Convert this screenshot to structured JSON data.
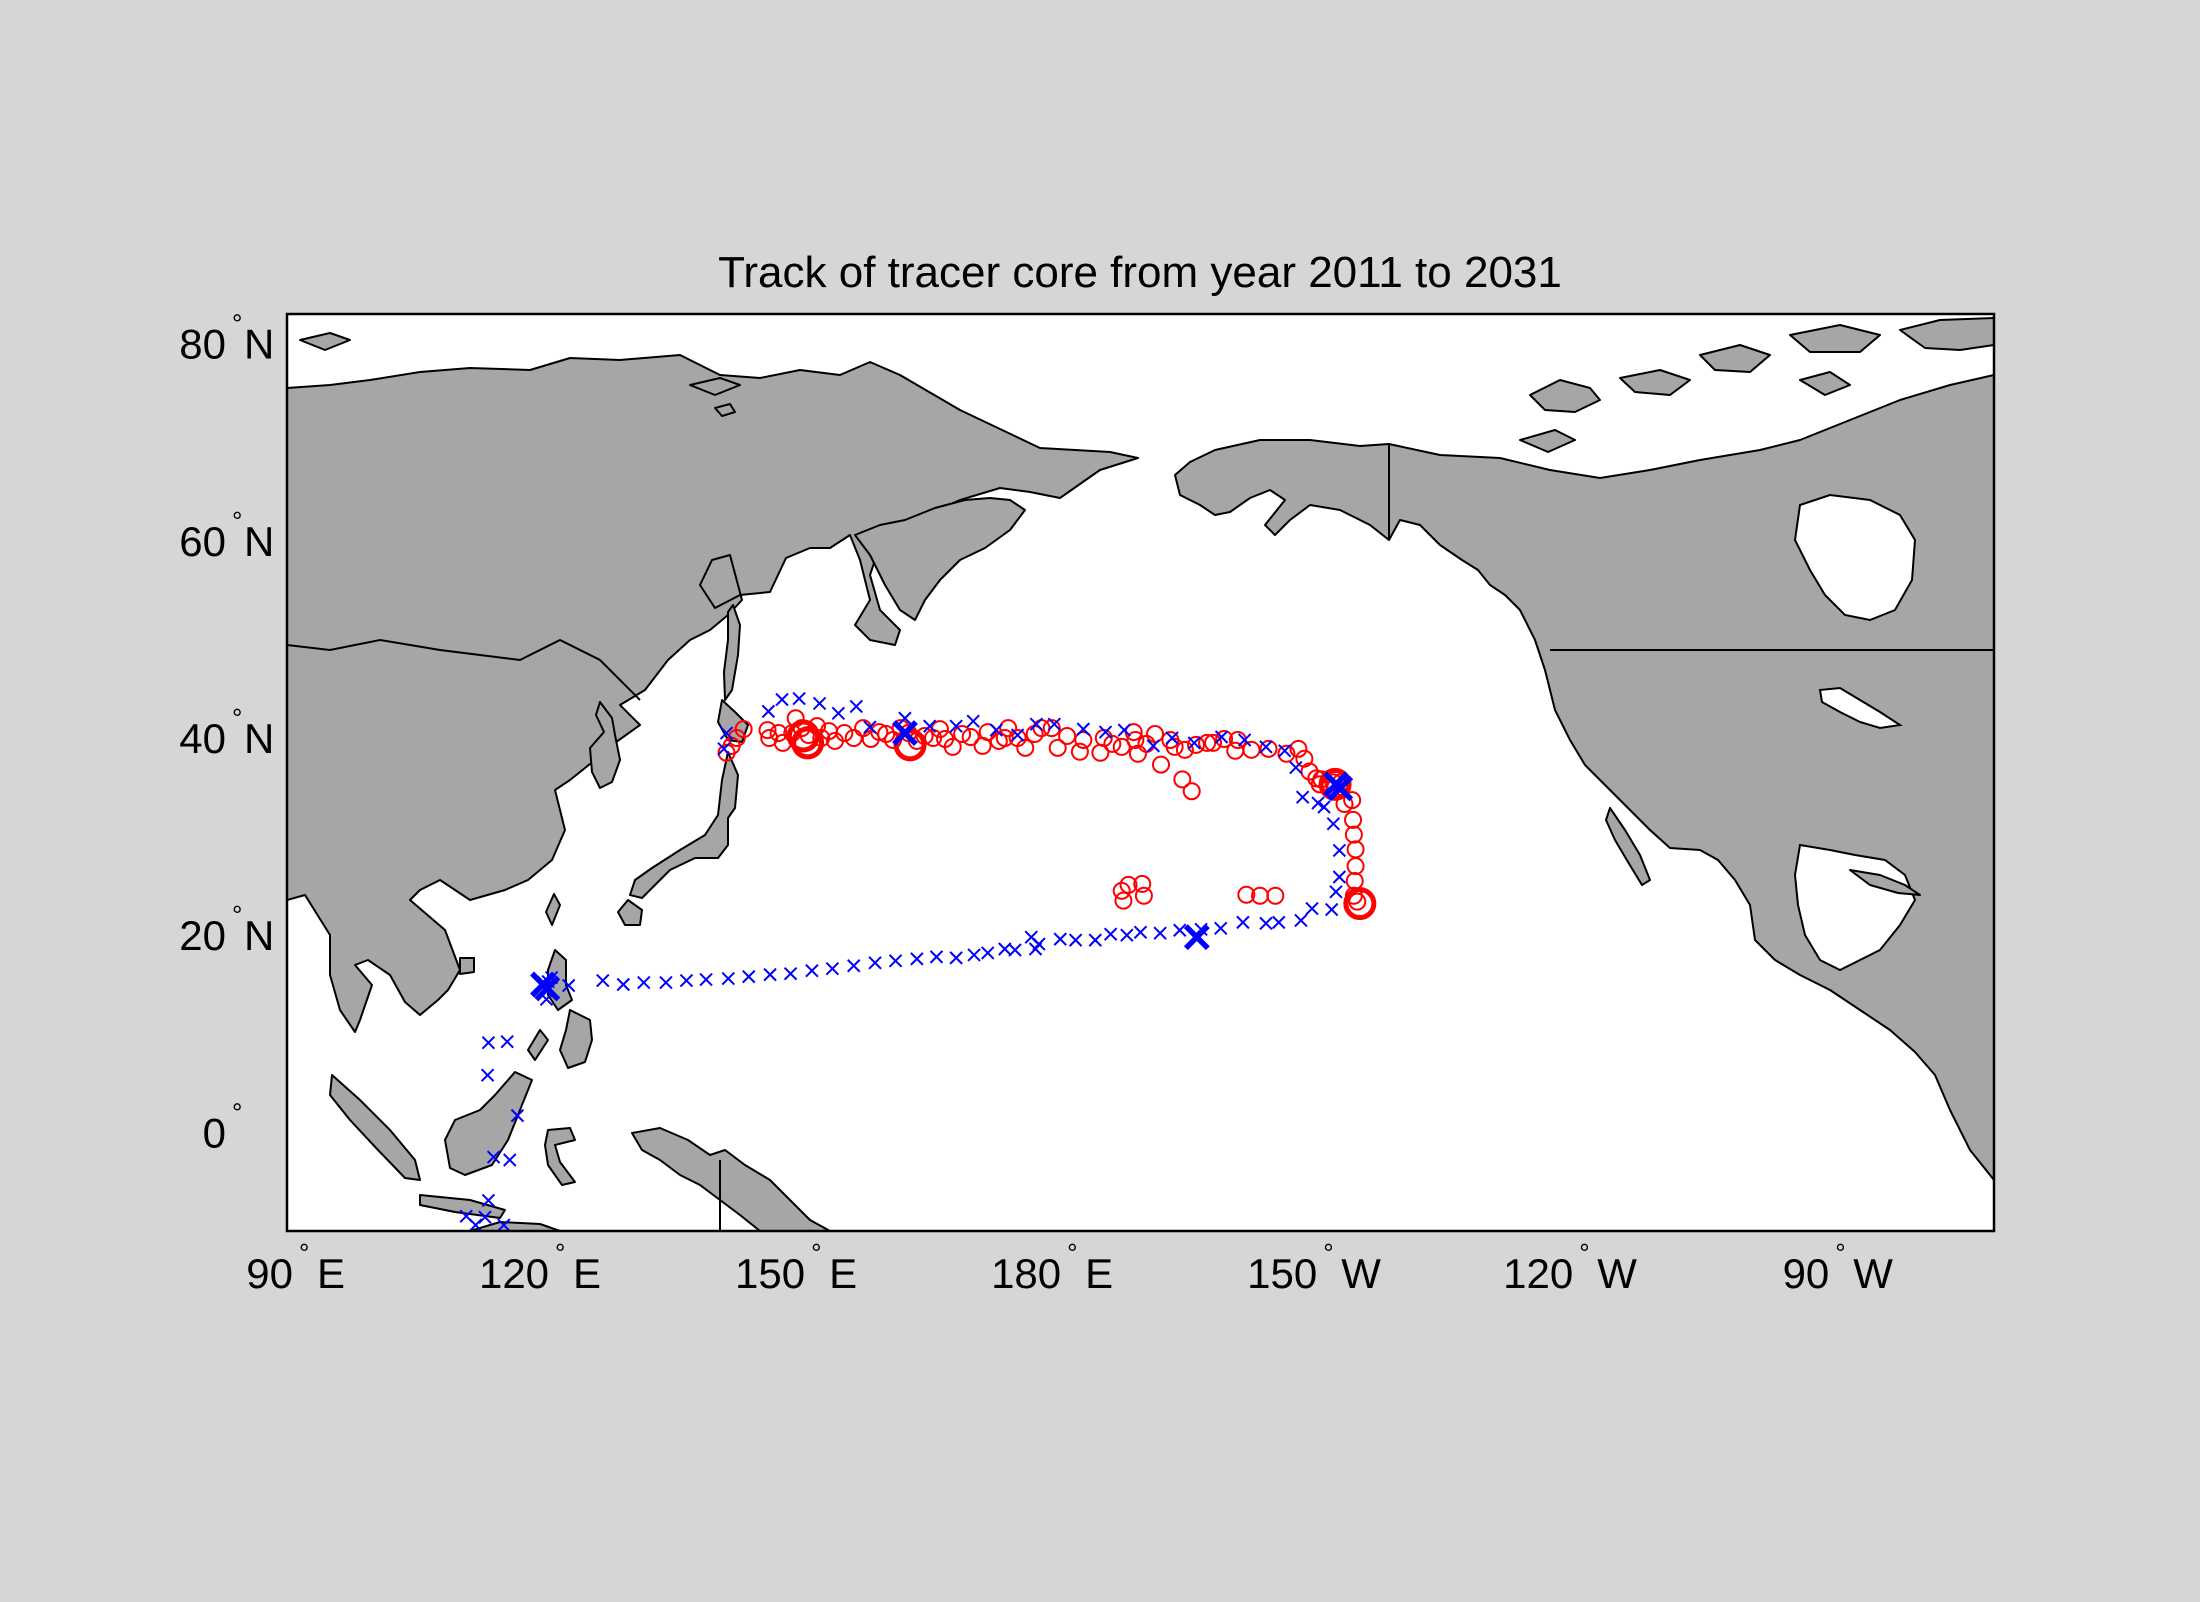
{
  "title": "Track of tracer core from  year 2011 to 2031",
  "axes": {
    "lon_range_east": [
      90,
      290
    ],
    "lat_range": [
      -10,
      83
    ],
    "x_ticks": [
      {
        "lon": 90,
        "label": "90",
        "hemi": "E"
      },
      {
        "lon": 120,
        "label": "120",
        "hemi": "E"
      },
      {
        "lon": 150,
        "label": "150",
        "hemi": "E"
      },
      {
        "lon": 180,
        "label": "180",
        "hemi": "E"
      },
      {
        "lon": 210,
        "label": "150",
        "hemi": "W"
      },
      {
        "lon": 240,
        "label": "120",
        "hemi": "W"
      },
      {
        "lon": 270,
        "label": "90",
        "hemi": "W"
      }
    ],
    "y_ticks": [
      {
        "lat": 80,
        "label": "80",
        "hemi": "N"
      },
      {
        "lat": 60,
        "label": "60",
        "hemi": "N"
      },
      {
        "lat": 40,
        "label": "40",
        "hemi": "N"
      },
      {
        "lat": 20,
        "label": "20",
        "hemi": "N"
      },
      {
        "lat": 0,
        "label": "0",
        "hemi": ""
      }
    ]
  },
  "colors": {
    "background": "#d6d6d6",
    "ocean": "#ffffff",
    "land": "#a6a6a6",
    "track_circle": "#ff0000",
    "track_cross": "#0000ff"
  },
  "chart_data": {
    "type": "scatter",
    "title": "Track of tracer core from  year 2011 to 2031",
    "xlim_lon_east": [
      90,
      290
    ],
    "ylim_lat": [
      -10,
      83
    ],
    "series": [
      {
        "marker": "o",
        "color": "#ff0000",
        "points_lon_lat": [
          [
            141.5,
            38.5
          ],
          [
            142.1,
            39.2
          ],
          [
            142.7,
            40.0
          ],
          [
            143.5,
            40.9
          ],
          [
            146.3,
            40.8
          ],
          [
            146.5,
            40.0
          ],
          [
            147.6,
            40.5
          ],
          [
            148.1,
            39.5
          ],
          [
            149.2,
            40.5
          ],
          [
            149.6,
            42.0
          ],
          [
            150.3,
            41.0
          ],
          [
            151.1,
            40.3
          ],
          [
            152.1,
            41.2
          ],
          [
            152.6,
            40.0
          ],
          [
            153.5,
            40.7
          ],
          [
            154.2,
            39.7
          ],
          [
            155.3,
            40.5
          ],
          [
            156.4,
            40.0
          ],
          [
            157.5,
            41.0
          ],
          [
            158.4,
            39.9
          ],
          [
            159.4,
            40.6
          ],
          [
            160.2,
            40.4
          ],
          [
            161.0,
            39.8
          ],
          [
            161.9,
            41.0
          ],
          [
            162.8,
            40.5
          ],
          [
            163.8,
            39.7
          ],
          [
            164.7,
            40.2
          ],
          [
            165.7,
            40.0
          ],
          [
            166.5,
            40.9
          ],
          [
            167.1,
            39.9
          ],
          [
            168.0,
            39.1
          ],
          [
            169.1,
            40.4
          ],
          [
            170.1,
            40.1
          ],
          [
            171.5,
            39.2
          ],
          [
            172.1,
            40.6
          ],
          [
            173.4,
            39.7
          ],
          [
            174.1,
            40.0
          ],
          [
            174.5,
            41.0
          ],
          [
            175.6,
            40.0
          ],
          [
            176.5,
            39.0
          ],
          [
            177.6,
            40.4
          ],
          [
            178.4,
            41.0
          ],
          [
            179.6,
            41.0
          ],
          [
            180.3,
            39.0
          ],
          [
            181.4,
            40.2
          ],
          [
            182.9,
            38.6
          ],
          [
            183.3,
            39.8
          ],
          [
            185.3,
            38.5
          ],
          [
            185.7,
            40.0
          ],
          [
            186.7,
            39.4
          ],
          [
            187.8,
            39.1
          ],
          [
            189.2,
            40.6
          ],
          [
            189.4,
            39.8
          ],
          [
            189.7,
            38.4
          ],
          [
            190.7,
            39.4
          ],
          [
            191.7,
            40.4
          ],
          [
            192.4,
            37.3
          ],
          [
            193.5,
            39.8
          ],
          [
            194.0,
            39.1
          ],
          [
            194.9,
            35.8
          ],
          [
            195.2,
            38.8
          ],
          [
            196.0,
            34.6
          ],
          [
            196.5,
            39.3
          ],
          [
            197.8,
            39.5
          ],
          [
            198.5,
            39.5
          ],
          [
            199.8,
            39.9
          ],
          [
            201.1,
            38.7
          ],
          [
            201.4,
            39.8
          ],
          [
            203.0,
            38.8
          ],
          [
            205.0,
            38.9
          ],
          [
            207.1,
            38.4
          ],
          [
            208.5,
            38.9
          ],
          [
            209.2,
            37.9
          ],
          [
            209.8,
            36.6
          ],
          [
            210.6,
            35.9
          ],
          [
            211.0,
            35.3
          ],
          [
            211.2,
            35.8
          ],
          [
            212.6,
            35.5
          ],
          [
            213.5,
            35.5
          ],
          [
            213.6,
            35.0
          ],
          [
            213.9,
            33.3
          ],
          [
            214.8,
            33.7
          ],
          [
            214.9,
            31.7
          ],
          [
            215.0,
            30.2
          ],
          [
            215.2,
            28.7
          ],
          [
            215.2,
            27.0
          ],
          [
            215.1,
            25.5
          ],
          [
            215.0,
            24.0
          ],
          [
            215.4,
            23.4
          ],
          [
            188.6,
            25.1
          ],
          [
            190.2,
            25.2
          ],
          [
            190.4,
            24.0
          ],
          [
            188.0,
            23.5
          ],
          [
            187.8,
            24.5
          ],
          [
            204.0,
            24.0
          ],
          [
            205.8,
            24.0
          ],
          [
            202.4,
            24.1
          ]
        ]
      },
      {
        "marker": "o-large",
        "color": "#ff0000",
        "points_lon_lat": [
          [
            150.5,
            40.2
          ],
          [
            151.0,
            39.5
          ],
          [
            163.0,
            39.3
          ],
          [
            212.8,
            35.3
          ],
          [
            215.7,
            23.2
          ]
        ]
      },
      {
        "marker": "x",
        "color": "#0000ff",
        "points_lon_lat": [
          [
            141.2,
            38.9
          ],
          [
            141.5,
            40.5
          ],
          [
            146.4,
            42.7
          ],
          [
            148.0,
            43.9
          ],
          [
            150.0,
            44.0
          ],
          [
            152.4,
            43.5
          ],
          [
            154.6,
            42.5
          ],
          [
            156.7,
            43.2
          ],
          [
            158.3,
            41.1
          ],
          [
            162.4,
            42.0
          ],
          [
            165.3,
            41.2
          ],
          [
            168.4,
            41.2
          ],
          [
            170.4,
            41.7
          ],
          [
            173.1,
            40.8
          ],
          [
            175.6,
            40.3
          ],
          [
            177.8,
            41.4
          ],
          [
            179.9,
            41.4
          ],
          [
            183.3,
            40.9
          ],
          [
            185.9,
            40.6
          ],
          [
            188.1,
            40.8
          ],
          [
            191.5,
            39.2
          ],
          [
            193.7,
            40.0
          ],
          [
            196.3,
            39.5
          ],
          [
            199.5,
            40.1
          ],
          [
            202.2,
            39.8
          ],
          [
            204.7,
            39.1
          ],
          [
            206.9,
            38.7
          ],
          [
            208.2,
            37.0
          ],
          [
            209.0,
            34.0
          ],
          [
            210.8,
            33.4
          ],
          [
            211.5,
            33.0
          ],
          [
            212.6,
            31.3
          ],
          [
            213.3,
            28.6
          ],
          [
            213.3,
            25.9
          ],
          [
            212.9,
            24.4
          ],
          [
            212.4,
            22.6
          ],
          [
            210.1,
            22.7
          ],
          [
            208.8,
            21.5
          ],
          [
            206.2,
            21.3
          ],
          [
            204.7,
            21.2
          ],
          [
            202.0,
            21.3
          ],
          [
            199.4,
            20.7
          ],
          [
            197.1,
            20.6
          ],
          [
            194.6,
            20.5
          ],
          [
            192.3,
            20.2
          ],
          [
            190.0,
            20.3
          ],
          [
            188.4,
            20.0
          ],
          [
            186.5,
            20.1
          ],
          [
            184.7,
            19.5
          ],
          [
            182.4,
            19.5
          ],
          [
            180.6,
            19.6
          ],
          [
            178.1,
            19.1
          ],
          [
            177.7,
            18.6
          ],
          [
            177.2,
            19.8
          ],
          [
            175.3,
            18.5
          ],
          [
            174.1,
            18.6
          ],
          [
            172.1,
            18.2
          ],
          [
            170.5,
            18.0
          ],
          [
            168.4,
            17.7
          ],
          [
            166.1,
            17.8
          ],
          [
            163.8,
            17.6
          ],
          [
            161.3,
            17.4
          ],
          [
            158.9,
            17.2
          ],
          [
            156.4,
            16.9
          ],
          [
            153.9,
            16.6
          ],
          [
            151.5,
            16.4
          ],
          [
            149.0,
            16.1
          ],
          [
            146.6,
            16.0
          ],
          [
            144.1,
            15.8
          ],
          [
            141.7,
            15.6
          ],
          [
            139.1,
            15.5
          ],
          [
            136.8,
            15.4
          ],
          [
            134.4,
            15.2
          ],
          [
            131.8,
            15.2
          ],
          [
            129.4,
            15.0
          ],
          [
            127.0,
            15.4
          ],
          [
            123.0,
            14.9
          ],
          [
            121.0,
            15.7
          ],
          [
            120.6,
            15.3
          ],
          [
            120.3,
            14.6
          ],
          [
            120.4,
            13.5
          ],
          [
            113.6,
            9.1
          ],
          [
            115.8,
            9.2
          ],
          [
            113.5,
            5.8
          ],
          [
            117.0,
            1.7
          ],
          [
            114.2,
            -2.5
          ],
          [
            116.1,
            -2.8
          ],
          [
            113.6,
            -6.9
          ],
          [
            111.0,
            -8.5
          ],
          [
            113.2,
            -8.6
          ],
          [
            115.4,
            -9.4
          ],
          [
            112.1,
            -9.4
          ]
        ]
      },
      {
        "marker": "x-large",
        "color": "#0000ff",
        "points_lon_lat": [
          [
            162.4,
            40.5
          ],
          [
            120.0,
            15.0
          ],
          [
            120.5,
            14.6
          ],
          [
            196.6,
            19.8
          ],
          [
            213.4,
            34.9
          ],
          [
            212.9,
            35.3
          ]
        ]
      }
    ]
  }
}
